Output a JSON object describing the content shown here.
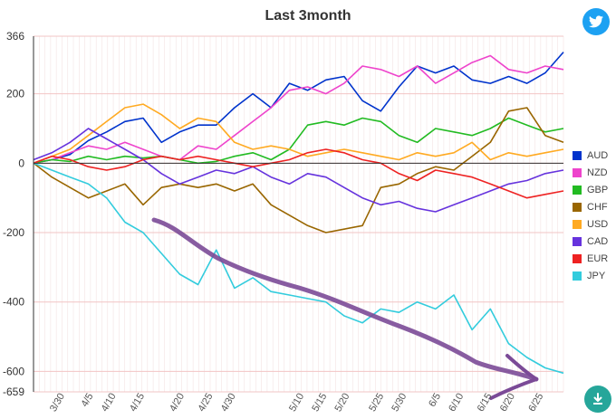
{
  "buttons": {
    "twitter_icon": "twitter-icon",
    "download_icon": "download-icon"
  },
  "chart_data": {
    "type": "line",
    "title": "Last 3month",
    "xlabel": "",
    "ylabel": "",
    "ylim": [
      -659,
      366
    ],
    "y_ticks": [
      366,
      200,
      0,
      -200,
      -400,
      -600,
      -659
    ],
    "x_ticks": [
      "3/30",
      "4/5",
      "4/10",
      "4/15",
      "4/20",
      "4/25",
      "4/30",
      "5/10",
      "5/15",
      "5/20",
      "5/25",
      "5/30",
      "6/5",
      "6/10",
      "6/15",
      "6/20",
      "6/25"
    ],
    "x_tick_pos": [
      5,
      10,
      14,
      19,
      26,
      31,
      35,
      47,
      51,
      55,
      61,
      65,
      71,
      75,
      80,
      84,
      89
    ],
    "x_range": [
      0,
      93
    ],
    "legend_position": "right",
    "series": [
      {
        "name": "AUD",
        "color": "#0033cc",
        "values": [
          0,
          10,
          25,
          65,
          90,
          120,
          130,
          60,
          90,
          110,
          110,
          160,
          200,
          160,
          230,
          210,
          240,
          250,
          180,
          150,
          220,
          280,
          260,
          280,
          240,
          230,
          250,
          230,
          260,
          320
        ]
      },
      {
        "name": "NZD",
        "color": "#ee44cc",
        "values": [
          0,
          10,
          30,
          50,
          40,
          60,
          40,
          20,
          10,
          50,
          40,
          80,
          120,
          160,
          210,
          220,
          200,
          230,
          280,
          270,
          250,
          280,
          230,
          260,
          290,
          310,
          270,
          260,
          280,
          270
        ]
      },
      {
        "name": "GBP",
        "color": "#22bb22",
        "values": [
          0,
          10,
          5,
          20,
          10,
          20,
          15,
          20,
          10,
          0,
          5,
          20,
          30,
          10,
          40,
          110,
          120,
          110,
          130,
          120,
          80,
          60,
          100,
          90,
          80,
          100,
          130,
          110,
          90,
          100
        ]
      },
      {
        "name": "CHF",
        "color": "#996600",
        "values": [
          0,
          -40,
          -70,
          -100,
          -80,
          -60,
          -120,
          -70,
          -60,
          -70,
          -60,
          -80,
          -60,
          -120,
          -150,
          -180,
          -200,
          -190,
          -180,
          -70,
          -60,
          -30,
          -10,
          -20,
          20,
          60,
          150,
          160,
          80,
          60
        ]
      },
      {
        "name": "USD",
        "color": "#ffaa22",
        "values": [
          0,
          20,
          40,
          80,
          120,
          160,
          170,
          140,
          100,
          130,
          120,
          60,
          40,
          50,
          40,
          20,
          30,
          40,
          30,
          20,
          10,
          30,
          20,
          30,
          60,
          10,
          30,
          20,
          30,
          40
        ]
      },
      {
        "name": "CAD",
        "color": "#6633dd",
        "values": [
          10,
          30,
          60,
          100,
          70,
          40,
          10,
          -30,
          -60,
          -40,
          -20,
          -30,
          -10,
          -40,
          -60,
          -30,
          -40,
          -70,
          -100,
          -120,
          -110,
          -130,
          -140,
          -120,
          -100,
          -80,
          -60,
          -50,
          -30,
          -20
        ]
      },
      {
        "name": "EUR",
        "color": "#ee2222",
        "values": [
          0,
          20,
          10,
          -10,
          -20,
          -10,
          10,
          20,
          10,
          20,
          10,
          0,
          -10,
          0,
          10,
          30,
          40,
          30,
          10,
          0,
          -30,
          -50,
          -20,
          -30,
          -40,
          -60,
          -80,
          -100,
          -90,
          -80
        ]
      },
      {
        "name": "JPY",
        "color": "#33ccdd",
        "values": [
          0,
          -20,
          -40,
          -60,
          -100,
          -170,
          -200,
          -260,
          -320,
          -350,
          -250,
          -360,
          -330,
          -370,
          -380,
          -390,
          -400,
          -440,
          -460,
          -420,
          -430,
          -400,
          -420,
          -380,
          -480,
          -420,
          -520,
          -560,
          -590,
          -605
        ]
      }
    ]
  }
}
